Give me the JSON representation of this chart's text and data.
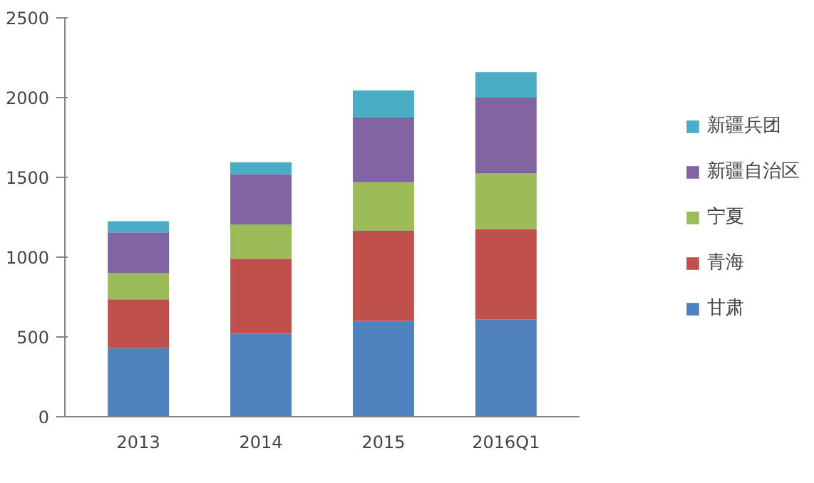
{
  "chart_data": {
    "type": "bar",
    "stacked": true,
    "categories": [
      "2013",
      "2014",
      "2015",
      "2016Q1"
    ],
    "series": [
      {
        "name": "甘肃",
        "color": "#4f81bd",
        "values": [
          430,
          520,
          600,
          610
        ]
      },
      {
        "name": "青海",
        "color": "#c0504d",
        "values": [
          305,
          470,
          565,
          565
        ]
      },
      {
        "name": "宁夏",
        "color": "#9bbb59",
        "values": [
          165,
          215,
          305,
          350
        ]
      },
      {
        "name": "新疆自治区",
        "color": "#8064a2",
        "values": [
          255,
          315,
          405,
          475
        ]
      },
      {
        "name": "新疆兵团",
        "color": "#4bacc6",
        "values": [
          70,
          75,
          170,
          160
        ]
      }
    ],
    "ylim": [
      0,
      2500
    ],
    "yticks": [
      0,
      500,
      1000,
      1500,
      2000,
      2500
    ],
    "grid": false,
    "legend": "right"
  }
}
